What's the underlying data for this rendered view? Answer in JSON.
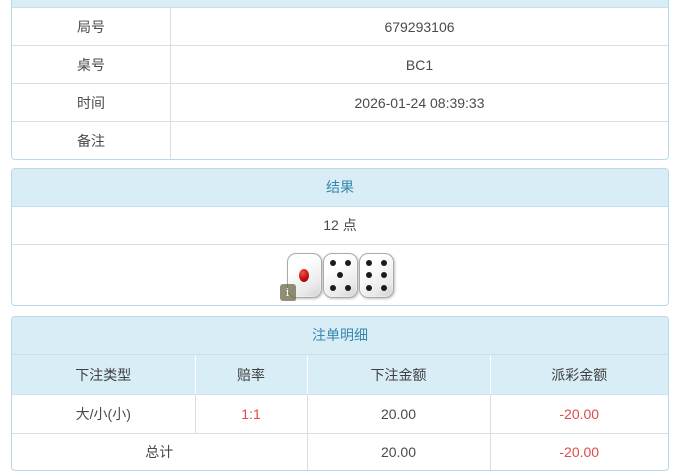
{
  "info": {
    "rows": [
      {
        "label": "局号",
        "value": "679293106"
      },
      {
        "label": "桌号",
        "value": "BC1"
      },
      {
        "label": "时间",
        "value": "2026-01-24 08:39:33"
      },
      {
        "label": "备注",
        "value": ""
      }
    ]
  },
  "result": {
    "title": "结果",
    "points": "12 点",
    "dice": [
      1,
      5,
      6
    ],
    "info_badge": "i"
  },
  "bets": {
    "title": "注单明细",
    "headers": [
      "下注类型",
      "赔率",
      "下注金额",
      "派彩金额"
    ],
    "rows": [
      {
        "type": "大/小(小)",
        "odds": "1:1",
        "amount": "20.00",
        "payout": "-20.00"
      }
    ],
    "total": {
      "label": "总计",
      "amount": "20.00",
      "payout": "-20.00"
    }
  },
  "colors": {
    "header_bg": "#d9edf7",
    "header_text": "#3a87ad",
    "panel_border": "#b7d8e7",
    "grid_line": "#dddddd",
    "text": "#4a4a4a",
    "negative": "#e04b4b",
    "die_pip_red": "#c40e0e"
  }
}
